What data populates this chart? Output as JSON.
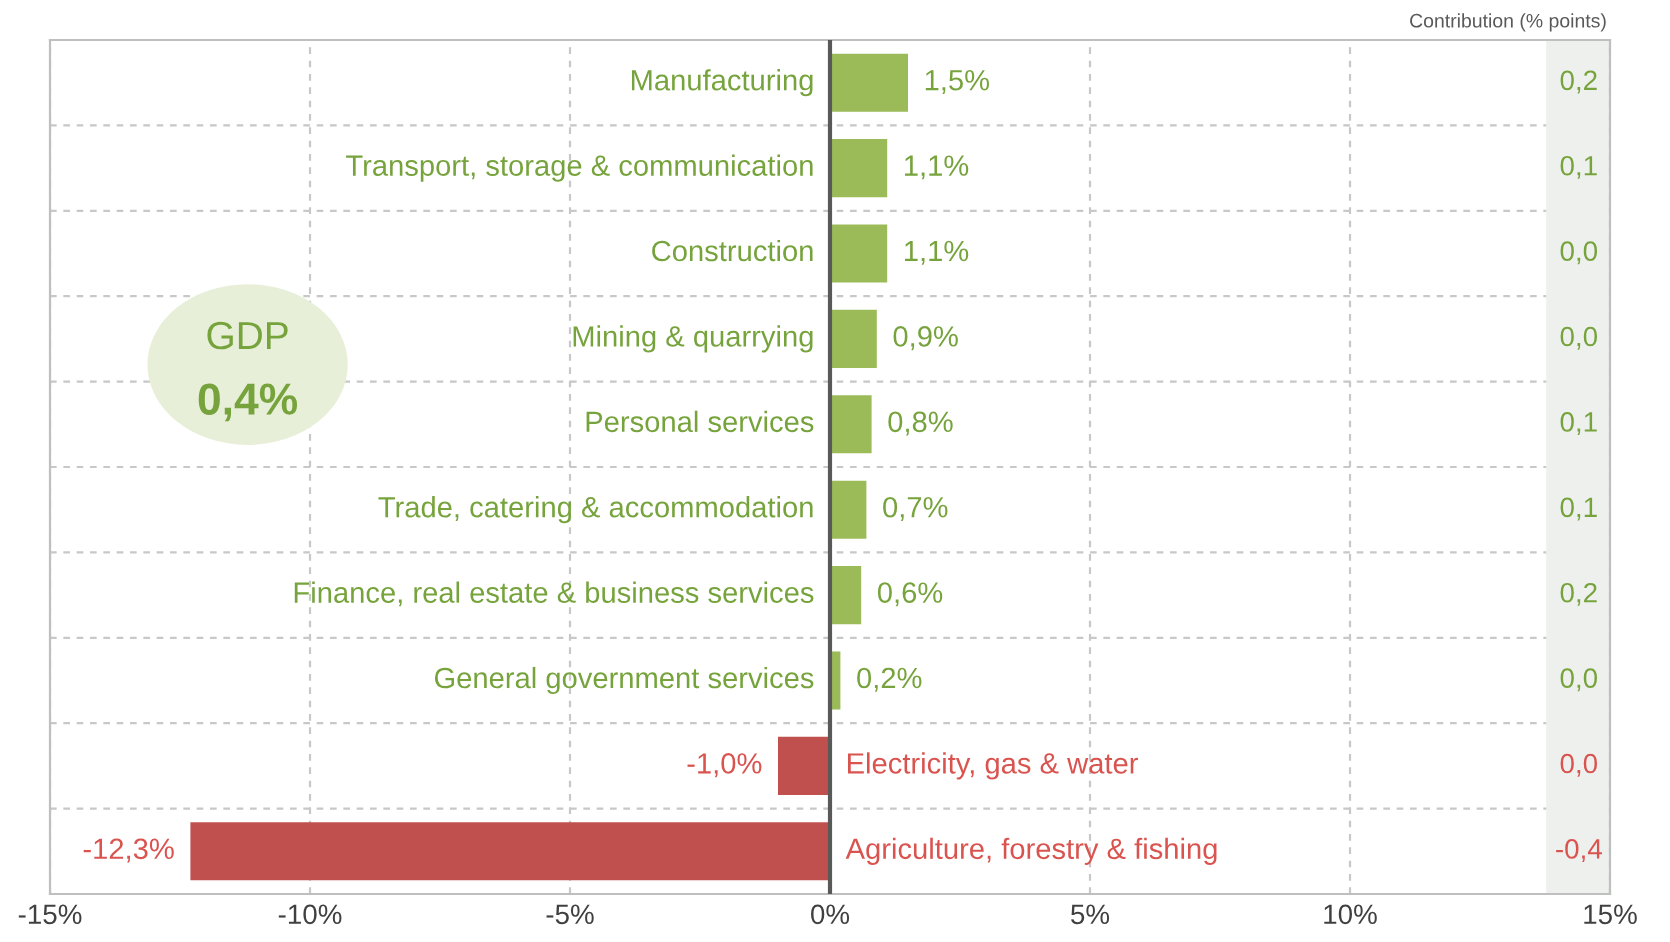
{
  "chart_data": {
    "type": "bar",
    "orientation": "horizontal",
    "categories": [
      "Manufacturing",
      "Transport, storage & communication",
      "Construction",
      "Mining & quarrying",
      "Personal services",
      "Trade, catering & accommodation",
      "Finance, real estate & business services",
      "General government services",
      "Electricity, gas & water",
      "Agriculture, forestry & fishing"
    ],
    "values": [
      1.5,
      1.1,
      1.1,
      0.9,
      0.8,
      0.7,
      0.6,
      0.2,
      -1.0,
      -12.3
    ],
    "value_labels": [
      "1,5%",
      "1,1%",
      "1,1%",
      "0,9%",
      "0,8%",
      "0,7%",
      "0,6%",
      "0,2%",
      "-1,0%",
      "-12,3%"
    ],
    "colors": [
      "#9bbb59",
      "#9bbb59",
      "#9bbb59",
      "#9bbb59",
      "#9bbb59",
      "#9bbb59",
      "#9bbb59",
      "#9bbb59",
      "#c0504d",
      "#c0504d"
    ],
    "xlim": [
      -15,
      15
    ],
    "xticks": [
      {
        "value": -15,
        "label": "-15%"
      },
      {
        "value": -10,
        "label": "-10%"
      },
      {
        "value": -5,
        "label": "-5%"
      },
      {
        "value": 0,
        "label": "0%"
      },
      {
        "value": 5,
        "label": "5%"
      },
      {
        "value": 10,
        "label": "10%"
      },
      {
        "value": 15,
        "label": "15%"
      }
    ],
    "grid": true,
    "annotations": [
      "Contribution (% points)",
      "GDP",
      "0,4%",
      "0,2",
      "0,1",
      "0,0",
      "0,0",
      "0,1",
      "0,1",
      "0,2",
      "0,0",
      "0,0",
      "-0,4"
    ]
  }
}
